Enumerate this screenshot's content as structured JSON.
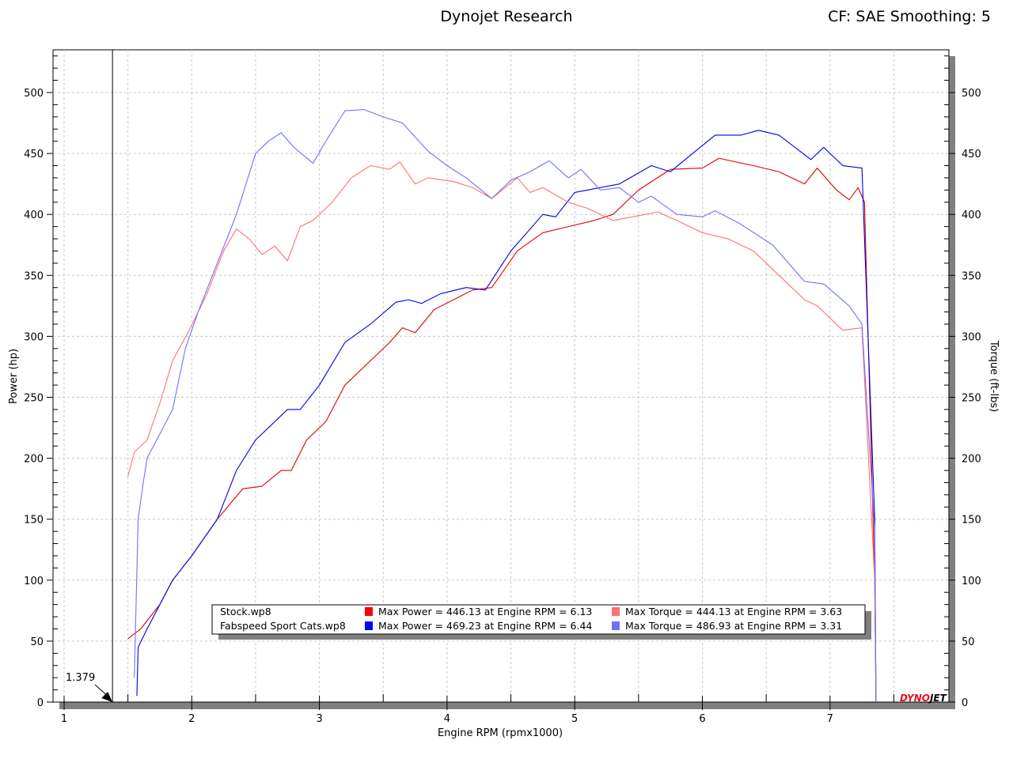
{
  "header": {
    "title": "Dynojet Research",
    "correction": "CF: SAE Smoothing: 5"
  },
  "chart_data": {
    "type": "line",
    "xlabel": "Engine RPM (rpmx1000)",
    "ylabel": "Power (hp)",
    "y2label": "Torque (ft-lbs)",
    "xlim": [
      0.9,
      7.95
    ],
    "ylim": [
      0,
      535
    ],
    "xticks": [
      "1",
      "2",
      "3",
      "4",
      "5",
      "6",
      "7"
    ],
    "yticks": [
      "0",
      "50",
      "100",
      "150",
      "200",
      "250",
      "300",
      "350",
      "400",
      "450",
      "500"
    ],
    "grid": true,
    "cursor": {
      "x": 1.379,
      "label": "1.379"
    },
    "legend_placement": "bottom-center",
    "logo": "DYNOJET",
    "legend": [
      {
        "run": "Stock.wp8",
        "power_text": "Max Power = 446.13 at Engine RPM = 6.13",
        "torque_text": "Max Torque = 444.13 at Engine RPM = 3.63",
        "power_color": "#ff0000",
        "torque_color": "#ff7070"
      },
      {
        "run": "Fabspeed Sport Cats.wp8",
        "power_text": "Max Power = 469.23 at Engine RPM = 6.44",
        "torque_text": "Max Torque = 486.93 at Engine RPM = 3.31",
        "power_color": "#0000ff",
        "torque_color": "#7070ff"
      }
    ],
    "series": [
      {
        "name": "Stock.wp8 Power",
        "color": "#e00000",
        "axis": "left",
        "points": [
          [
            1.5,
            52
          ],
          [
            1.6,
            60
          ],
          [
            1.75,
            80
          ],
          [
            1.85,
            100
          ],
          [
            2.0,
            120
          ],
          [
            2.2,
            150
          ],
          [
            2.4,
            175
          ],
          [
            2.55,
            177
          ],
          [
            2.7,
            190
          ],
          [
            2.78,
            190
          ],
          [
            2.9,
            215
          ],
          [
            3.05,
            230
          ],
          [
            3.2,
            260
          ],
          [
            3.4,
            280
          ],
          [
            3.55,
            295
          ],
          [
            3.65,
            307
          ],
          [
            3.75,
            303
          ],
          [
            3.9,
            322
          ],
          [
            4.05,
            330
          ],
          [
            4.2,
            338
          ],
          [
            4.35,
            340
          ],
          [
            4.55,
            370
          ],
          [
            4.75,
            385
          ],
          [
            4.95,
            390
          ],
          [
            5.15,
            395
          ],
          [
            5.3,
            400
          ],
          [
            5.5,
            420
          ],
          [
            5.75,
            437
          ],
          [
            6.0,
            438
          ],
          [
            6.13,
            446
          ],
          [
            6.4,
            440
          ],
          [
            6.6,
            435
          ],
          [
            6.8,
            425
          ],
          [
            6.9,
            438
          ],
          [
            7.05,
            420
          ],
          [
            7.15,
            412
          ],
          [
            7.22,
            422
          ],
          [
            7.27,
            410
          ],
          [
            7.35,
            100
          ],
          [
            7.36,
            0
          ]
        ]
      },
      {
        "name": "Fabspeed Sport Cats.wp8 Power",
        "color": "#0000e0",
        "axis": "left",
        "points": [
          [
            1.57,
            5
          ],
          [
            1.58,
            45
          ],
          [
            1.65,
            60
          ],
          [
            1.75,
            80
          ],
          [
            1.85,
            100
          ],
          [
            2.0,
            120
          ],
          [
            2.2,
            150
          ],
          [
            2.35,
            190
          ],
          [
            2.5,
            215
          ],
          [
            2.75,
            240
          ],
          [
            2.85,
            240
          ],
          [
            3.0,
            260
          ],
          [
            3.2,
            295
          ],
          [
            3.4,
            310
          ],
          [
            3.6,
            328
          ],
          [
            3.7,
            330
          ],
          [
            3.8,
            327
          ],
          [
            3.95,
            335
          ],
          [
            4.15,
            340
          ],
          [
            4.3,
            338
          ],
          [
            4.5,
            370
          ],
          [
            4.75,
            400
          ],
          [
            4.85,
            398
          ],
          [
            5.0,
            418
          ],
          [
            5.2,
            422
          ],
          [
            5.35,
            425
          ],
          [
            5.6,
            440
          ],
          [
            5.75,
            435
          ],
          [
            5.9,
            448
          ],
          [
            6.1,
            465
          ],
          [
            6.3,
            465
          ],
          [
            6.44,
            469
          ],
          [
            6.6,
            465
          ],
          [
            6.85,
            445
          ],
          [
            6.95,
            455
          ],
          [
            7.1,
            440
          ],
          [
            7.25,
            438
          ],
          [
            7.35,
            150
          ],
          [
            7.36,
            0
          ]
        ]
      },
      {
        "name": "Stock.wp8 Torque",
        "color": "#ff7070",
        "axis": "right",
        "points": [
          [
            1.5,
            185
          ],
          [
            1.55,
            205
          ],
          [
            1.65,
            215
          ],
          [
            1.75,
            245
          ],
          [
            1.85,
            280
          ],
          [
            1.98,
            305
          ],
          [
            2.12,
            335
          ],
          [
            2.25,
            370
          ],
          [
            2.35,
            388
          ],
          [
            2.45,
            380
          ],
          [
            2.55,
            367
          ],
          [
            2.65,
            374
          ],
          [
            2.75,
            362
          ],
          [
            2.85,
            390
          ],
          [
            2.95,
            395
          ],
          [
            3.1,
            410
          ],
          [
            3.25,
            430
          ],
          [
            3.4,
            440
          ],
          [
            3.55,
            437
          ],
          [
            3.63,
            443
          ],
          [
            3.75,
            425
          ],
          [
            3.85,
            430
          ],
          [
            4.05,
            427
          ],
          [
            4.2,
            422
          ],
          [
            4.35,
            413
          ],
          [
            4.55,
            430
          ],
          [
            4.65,
            418
          ],
          [
            4.75,
            422
          ],
          [
            4.95,
            410
          ],
          [
            5.1,
            405
          ],
          [
            5.3,
            395
          ],
          [
            5.45,
            398
          ],
          [
            5.65,
            402
          ],
          [
            5.8,
            395
          ],
          [
            6.0,
            385
          ],
          [
            6.2,
            380
          ],
          [
            6.4,
            370
          ],
          [
            6.6,
            350
          ],
          [
            6.8,
            330
          ],
          [
            6.9,
            325
          ],
          [
            7.1,
            305
          ],
          [
            7.25,
            307
          ],
          [
            7.35,
            100
          ],
          [
            7.36,
            0
          ]
        ]
      },
      {
        "name": "Fabspeed Sport Cats.wp8 Torque",
        "color": "#7070ff",
        "axis": "right",
        "points": [
          [
            1.55,
            20
          ],
          [
            1.58,
            150
          ],
          [
            1.62,
            180
          ],
          [
            1.65,
            200
          ],
          [
            1.75,
            220
          ],
          [
            1.85,
            240
          ],
          [
            1.95,
            290
          ],
          [
            2.05,
            320
          ],
          [
            2.2,
            360
          ],
          [
            2.35,
            400
          ],
          [
            2.5,
            450
          ],
          [
            2.6,
            460
          ],
          [
            2.7,
            467
          ],
          [
            2.8,
            455
          ],
          [
            2.95,
            442
          ],
          [
            3.05,
            460
          ],
          [
            3.2,
            485
          ],
          [
            3.35,
            486
          ],
          [
            3.5,
            480
          ],
          [
            3.65,
            475
          ],
          [
            3.85,
            452
          ],
          [
            4.0,
            440
          ],
          [
            4.15,
            430
          ],
          [
            4.35,
            413
          ],
          [
            4.5,
            428
          ],
          [
            4.65,
            435
          ],
          [
            4.8,
            444
          ],
          [
            4.95,
            430
          ],
          [
            5.05,
            437
          ],
          [
            5.2,
            420
          ],
          [
            5.35,
            422
          ],
          [
            5.5,
            410
          ],
          [
            5.6,
            415
          ],
          [
            5.8,
            400
          ],
          [
            6.0,
            398
          ],
          [
            6.1,
            403
          ],
          [
            6.3,
            392
          ],
          [
            6.55,
            375
          ],
          [
            6.8,
            345
          ],
          [
            6.95,
            343
          ],
          [
            7.15,
            325
          ],
          [
            7.25,
            310
          ],
          [
            7.35,
            140
          ],
          [
            7.36,
            0
          ]
        ]
      }
    ]
  }
}
